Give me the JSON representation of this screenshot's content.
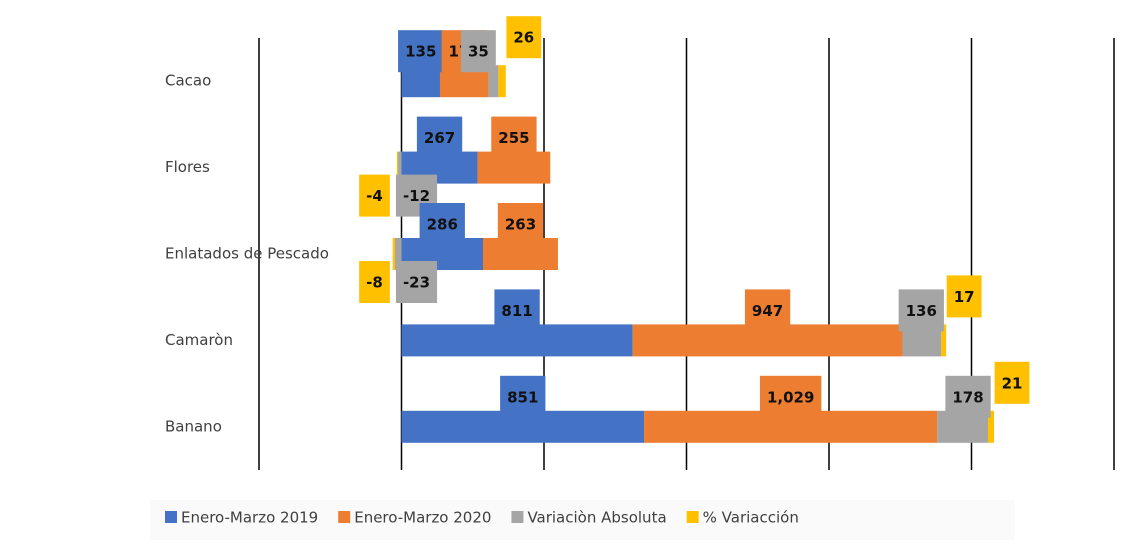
{
  "chart_data": {
    "type": "stacked_barh",
    "categories": [
      "Cacao",
      "Flores",
      "Enlatados de Pescado",
      "Camaròn",
      "Banano"
    ],
    "series": [
      {
        "name": "Enero-Marzo 2019",
        "color": "#4472c4",
        "values": [
          135,
          267,
          286,
          811,
          851
        ]
      },
      {
        "name": "Enero-Marzo 2020",
        "color": "#ed7d31",
        "values": [
          170,
          255,
          263,
          947,
          1029
        ],
        "value_labels": [
          "170",
          "255",
          "263",
          "947",
          "1,029"
        ]
      },
      {
        "name": "Variaciòn Absoluta",
        "color": "#a5a5a5",
        "values": [
          35,
          -12,
          -23,
          136,
          178
        ]
      },
      {
        "name": "% Variacción",
        "color": "#ffc000",
        "values": [
          26,
          -4,
          -8,
          17,
          21
        ]
      }
    ],
    "xlim": [
      -500,
      2500
    ],
    "xticks": [
      -500,
      0,
      500,
      1000,
      1500,
      2000,
      2500
    ],
    "grid": true,
    "legend": "bottom"
  }
}
